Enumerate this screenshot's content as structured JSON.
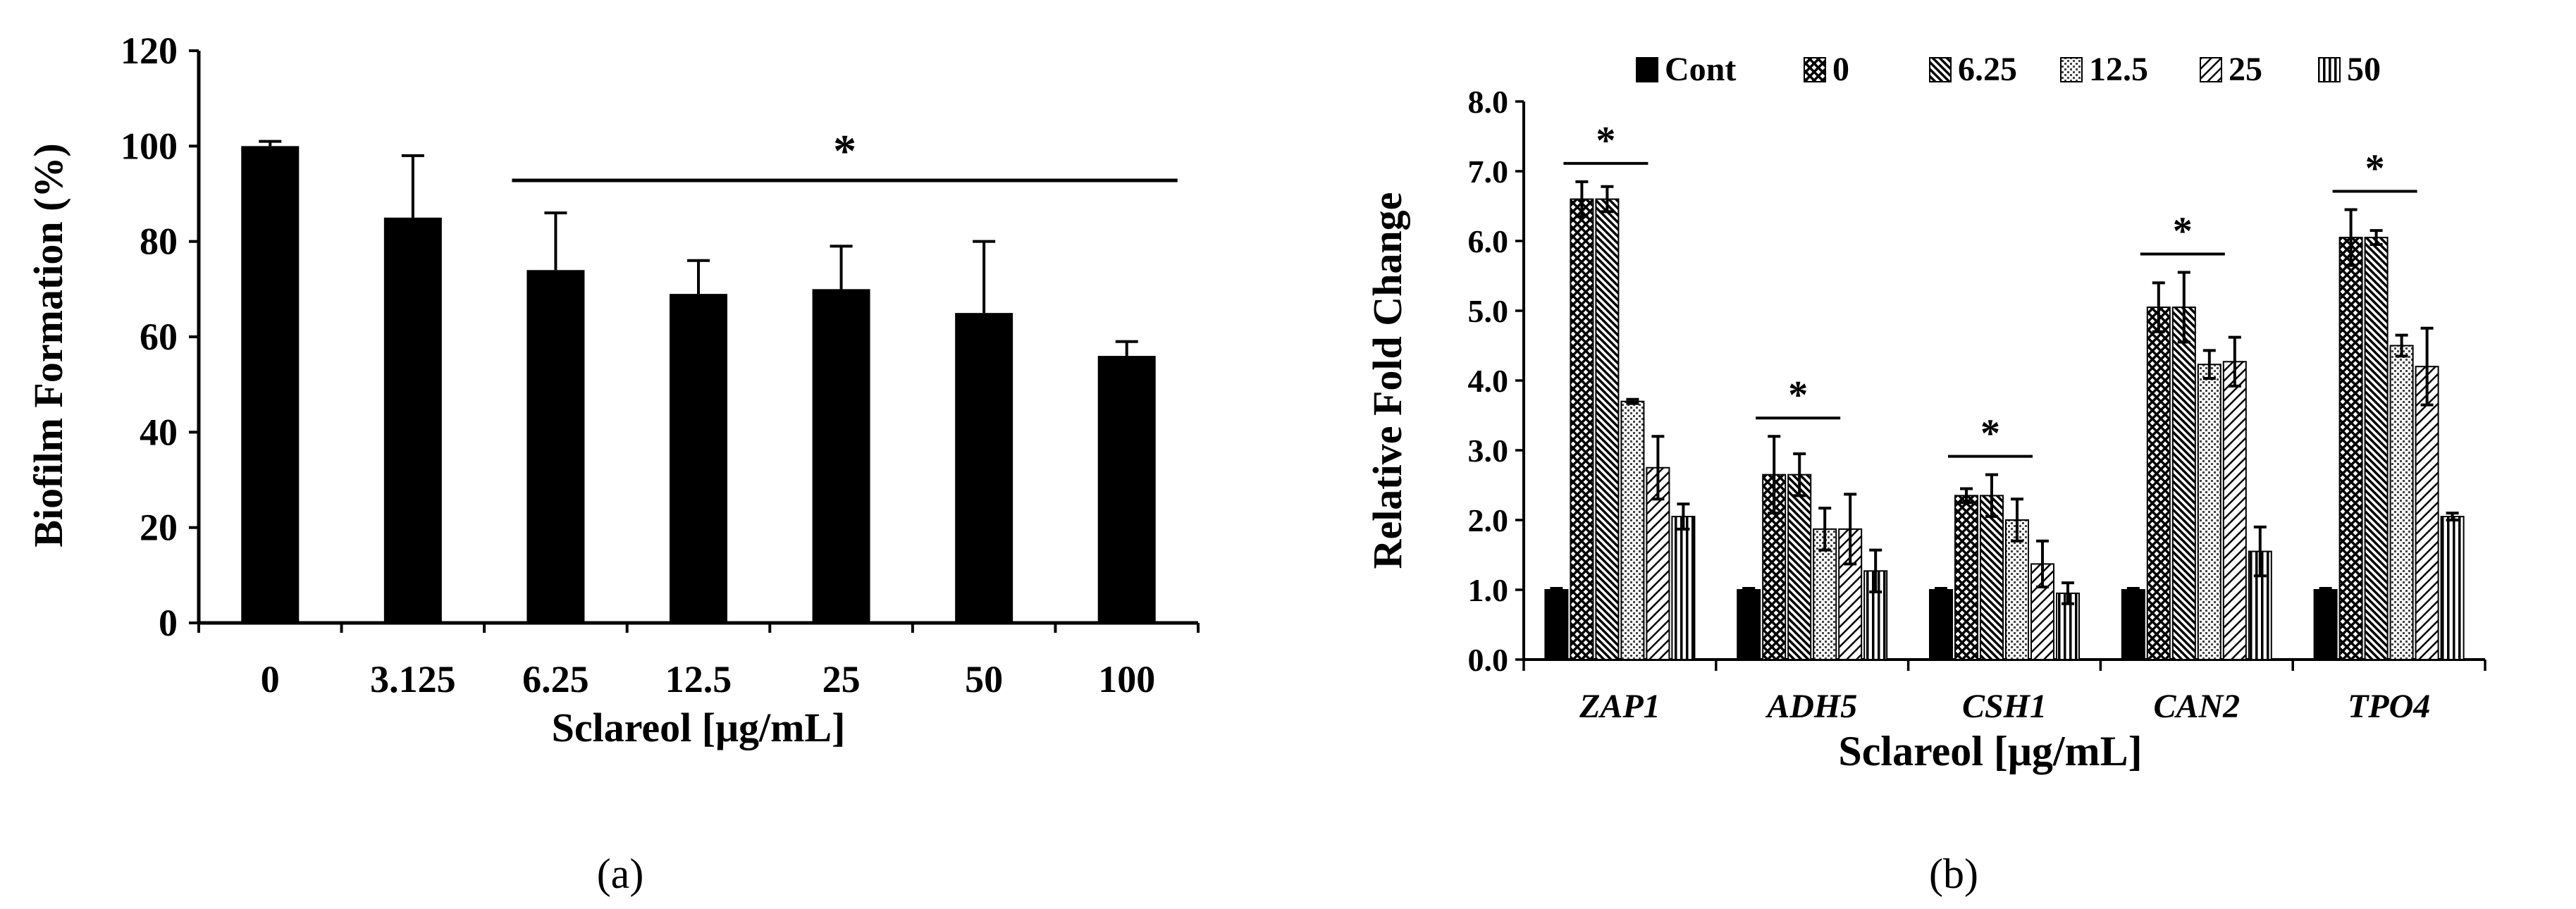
{
  "panels": [
    {
      "label": "(a)"
    },
    {
      "label": "(b)"
    }
  ],
  "chart_data": [
    {
      "type": "bar",
      "categories": [
        "0",
        "3.125",
        "6.25",
        "12.5",
        "25",
        "50",
        "100"
      ],
      "values": [
        100,
        85,
        74,
        69,
        70,
        65,
        56
      ],
      "errors": [
        1,
        13,
        12,
        7,
        9,
        15,
        3
      ],
      "ylim": [
        0,
        120
      ],
      "yticks": [
        "0",
        "20",
        "40",
        "60",
        "80",
        "100",
        "120"
      ],
      "xlabel": "Sclareol [μg/mL]",
      "ylabel": "Biofilm Formation (%)",
      "significance": {
        "marker": "*",
        "from_category": "6.25",
        "to_category": "100"
      }
    },
    {
      "type": "bar",
      "categories": [
        "ZAP1",
        "ADH5",
        "CSH1",
        "CAN2",
        "TPO4"
      ],
      "series": [
        {
          "name": "Cont",
          "pattern": "solid",
          "values": [
            1.0,
            1.0,
            1.0,
            1.0,
            1.0
          ],
          "errors": [
            0.02,
            0.02,
            0.02,
            0.02,
            0.02
          ]
        },
        {
          "name": "0",
          "pattern": "crosshatch",
          "values": [
            6.6,
            2.65,
            2.35,
            5.05,
            6.05
          ],
          "errors": [
            0.25,
            0.55,
            0.1,
            0.35,
            0.4
          ]
        },
        {
          "name": "6.25",
          "pattern": "diag-dense",
          "values": [
            6.6,
            2.65,
            2.35,
            5.05,
            6.05
          ],
          "errors": [
            0.18,
            0.3,
            0.3,
            0.5,
            0.1
          ]
        },
        {
          "name": "12.5",
          "pattern": "dots",
          "values": [
            3.7,
            1.87,
            2.0,
            4.23,
            4.5
          ],
          "errors": [
            0.03,
            0.3,
            0.3,
            0.2,
            0.15
          ]
        },
        {
          "name": "25",
          "pattern": "diag-light",
          "values": [
            2.75,
            1.87,
            1.37,
            4.27,
            4.2
          ],
          "errors": [
            0.45,
            0.5,
            0.33,
            0.35,
            0.55
          ]
        },
        {
          "name": "50",
          "pattern": "vertical",
          "values": [
            2.05,
            1.27,
            0.95,
            1.55,
            2.05
          ],
          "errors": [
            0.18,
            0.3,
            0.15,
            0.35,
            0.05
          ]
        }
      ],
      "ylim": [
        0,
        8
      ],
      "yticks": [
        "0.0",
        "1.0",
        "2.0",
        "3.0",
        "4.0",
        "5.0",
        "6.0",
        "7.0",
        "8.0"
      ],
      "xlabel": "Sclareol [μg/mL]",
      "ylabel": "Relative Fold Change",
      "legend": "top",
      "significance": [
        {
          "category": "ZAP1",
          "marker": "*"
        },
        {
          "category": "ADH5",
          "marker": "*"
        },
        {
          "category": "CSH1",
          "marker": "*"
        },
        {
          "category": "CAN2",
          "marker": "*"
        },
        {
          "category": "TPO4",
          "marker": "*"
        }
      ]
    }
  ]
}
